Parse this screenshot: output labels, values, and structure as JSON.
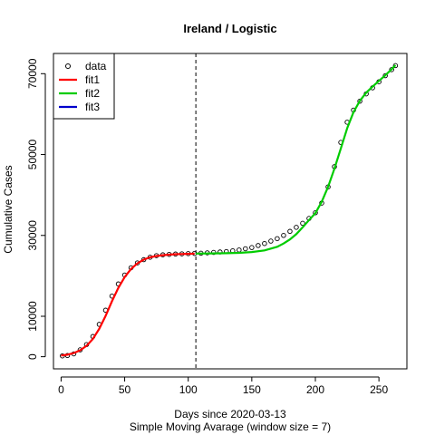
{
  "chart_data": {
    "type": "scatter",
    "title": "Ireland / Logistic",
    "xlabel": "Days since 2020-03-13",
    "sublabel": "Simple Moving Avarage (window size = 7)",
    "ylabel": "Cumulative Cases",
    "xlim": [
      -6,
      272
    ],
    "ylim": [
      -3000,
      75000
    ],
    "x_ticks": [
      0,
      50,
      100,
      150,
      200,
      250
    ],
    "y_ticks": [
      0,
      10000,
      30000,
      50000,
      70000
    ],
    "vline_x": 106,
    "grid": false,
    "legend_position": "top-left",
    "legend": [
      {
        "label": "data",
        "style": "points",
        "color": "#000000"
      },
      {
        "label": "fit1",
        "style": "line",
        "color": "#ff0000"
      },
      {
        "label": "fit2",
        "style": "line",
        "color": "#00cc00"
      },
      {
        "label": "fit3",
        "style": "line",
        "color": "#0000cc"
      }
    ],
    "data_points": {
      "x": [
        1,
        5,
        10,
        15,
        20,
        25,
        30,
        35,
        40,
        45,
        50,
        55,
        60,
        65,
        70,
        75,
        80,
        85,
        90,
        95,
        100,
        105,
        110,
        115,
        120,
        125,
        130,
        135,
        140,
        145,
        150,
        155,
        160,
        165,
        170,
        175,
        180,
        185,
        190,
        195,
        200,
        205,
        210,
        215,
        220,
        225,
        230,
        235,
        240,
        245,
        250,
        255,
        260,
        263
      ],
      "y": [
        200,
        300,
        700,
        1700,
        3000,
        5000,
        8000,
        11500,
        15000,
        18000,
        20200,
        22000,
        23200,
        24000,
        24600,
        25000,
        25200,
        25300,
        25400,
        25450,
        25500,
        25550,
        25600,
        25700,
        25800,
        25900,
        26000,
        26200,
        26400,
        26700,
        27000,
        27500,
        28000,
        28600,
        29200,
        30000,
        31000,
        32000,
        33000,
        34200,
        35600,
        38000,
        42000,
        47000,
        53000,
        58000,
        61000,
        63200,
        65000,
        66500,
        68000,
        69500,
        71000,
        72000
      ]
    },
    "series": [
      {
        "name": "fit1",
        "color": "#ff0000",
        "x": [
          0,
          5,
          10,
          15,
          20,
          25,
          30,
          35,
          40,
          45,
          50,
          55,
          60,
          65,
          70,
          75,
          80,
          85,
          90,
          95,
          100,
          105
        ],
        "y": [
          300,
          500,
          900,
          1600,
          2700,
          4400,
          6900,
          10100,
          13700,
          17000,
          19700,
          21700,
          23100,
          24000,
          24600,
          24900,
          25100,
          25250,
          25350,
          25400,
          25450,
          25480
        ]
      },
      {
        "name": "fit2",
        "color": "#00cc00",
        "x": [
          106,
          120,
          130,
          140,
          150,
          160,
          170,
          175,
          180,
          185,
          190,
          195,
          200,
          205,
          210,
          215,
          220,
          225,
          230,
          235,
          240,
          245,
          250,
          255,
          260,
          263
        ],
        "y": [
          25500,
          25550,
          25600,
          25700,
          25900,
          26300,
          27200,
          28000,
          29000,
          30300,
          32000,
          33800,
          35500,
          38300,
          42000,
          46500,
          51500,
          56500,
          60500,
          63300,
          65300,
          66800,
          68200,
          69600,
          71100,
          72100
        ]
      },
      {
        "name": "fit3",
        "color": "#0000cc",
        "x": [],
        "y": []
      }
    ]
  }
}
